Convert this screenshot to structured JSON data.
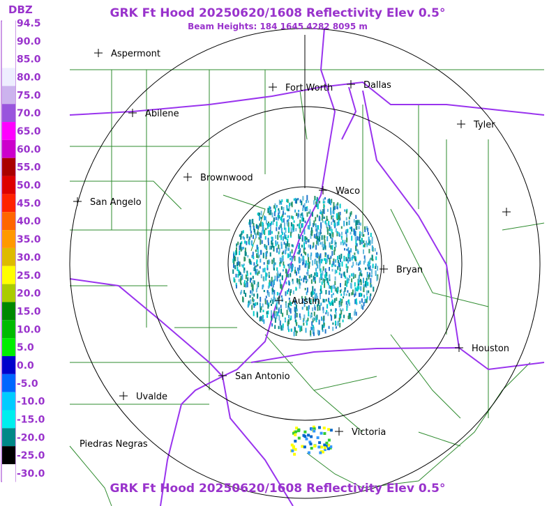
{
  "header": {
    "title": "GRK Ft Hood 20250620/1608 Reflectivity Elev 0.5°",
    "subtitle": "Beam Heights: 184 1645 4282 8095 m",
    "footer": "GRK Ft Hood 20250620/1608 Reflectivity Elev 0.5°"
  },
  "legend": {
    "unit": "DBZ",
    "labels": [
      "94.5",
      "90.0",
      "85.0",
      "80.0",
      "75.0",
      "70.0",
      "65.0",
      "60.0",
      "55.0",
      "50.0",
      "45.0",
      "40.0",
      "35.0",
      "30.0",
      "25.0",
      "20.0",
      "15.0",
      "10.0",
      "5.0",
      "0.0",
      "-5.0",
      "-10.0",
      "-15.0",
      "-20.0",
      "-25.0",
      "-30.0"
    ]
  },
  "cities": [
    "Aspermont",
    "Abilene",
    "Fort Worth",
    "Dallas",
    "Tyler",
    "Brownwood",
    "San Angelo",
    "Waco",
    "Bryan",
    "Austin",
    "Houston",
    "San Antonio",
    "Uvalde",
    "Victoria",
    "Piedras Negras"
  ]
}
